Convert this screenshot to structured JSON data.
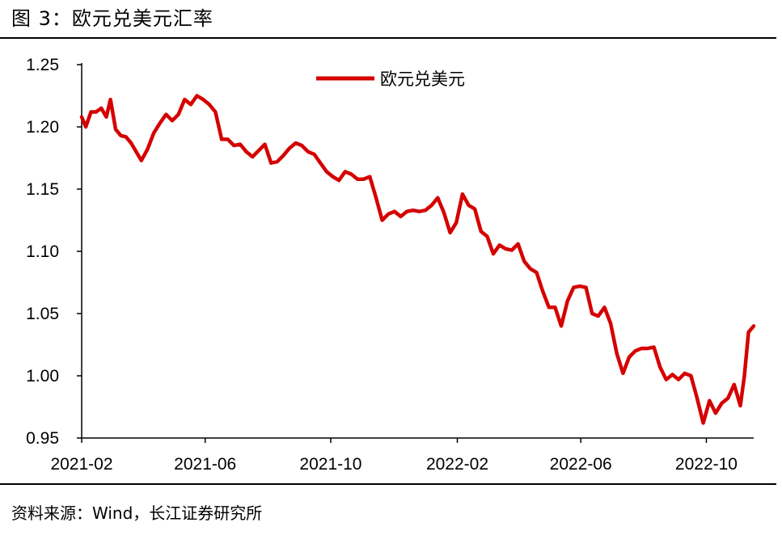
{
  "figure": {
    "title": "图 3：欧元兑美元汇率",
    "source": "资料来源：Wind，长江证券研究所"
  },
  "colors": {
    "series": "#d50000",
    "axis": "#000000"
  },
  "chart_data": {
    "type": "line",
    "title": "",
    "xlabel": "",
    "ylabel": "",
    "ylim": [
      0.95,
      1.25
    ],
    "yticks": [
      "0.95",
      "1.00",
      "1.05",
      "1.10",
      "1.15",
      "1.20",
      "1.25"
    ],
    "xticks": [
      "2021-02",
      "2021-06",
      "2021-10",
      "2022-02",
      "2022-06",
      "2022-10"
    ],
    "xlim": [
      "2021-02-01",
      "2022-11-16"
    ],
    "grid": false,
    "legend": "top-center",
    "series": [
      {
        "name": "欧元兑美元",
        "x": [
          "2021-02-01",
          "2021-02-05",
          "2021-02-10",
          "2021-02-15",
          "2021-02-20",
          "2021-02-25",
          "2021-03-01",
          "2021-03-06",
          "2021-03-11",
          "2021-03-16",
          "2021-03-21",
          "2021-03-26",
          "2021-03-31",
          "2021-04-06",
          "2021-04-12",
          "2021-04-18",
          "2021-04-24",
          "2021-04-30",
          "2021-05-06",
          "2021-05-12",
          "2021-05-18",
          "2021-05-24",
          "2021-05-30",
          "2021-06-05",
          "2021-06-11",
          "2021-06-17",
          "2021-06-23",
          "2021-06-29",
          "2021-07-05",
          "2021-07-11",
          "2021-07-17",
          "2021-07-23",
          "2021-07-29",
          "2021-08-04",
          "2021-08-10",
          "2021-08-16",
          "2021-08-22",
          "2021-08-28",
          "2021-09-03",
          "2021-09-09",
          "2021-09-15",
          "2021-09-21",
          "2021-09-27",
          "2021-10-03",
          "2021-10-09",
          "2021-10-15",
          "2021-10-21",
          "2021-10-27",
          "2021-11-02",
          "2021-11-08",
          "2021-11-14",
          "2021-11-20",
          "2021-11-26",
          "2021-12-02",
          "2021-12-08",
          "2021-12-14",
          "2021-12-20",
          "2021-12-26",
          "2022-01-01",
          "2022-01-07",
          "2022-01-13",
          "2022-01-19",
          "2022-01-25",
          "2022-01-31",
          "2022-02-06",
          "2022-02-12",
          "2022-02-18",
          "2022-02-24",
          "2022-03-02",
          "2022-03-08",
          "2022-03-14",
          "2022-03-20",
          "2022-03-26",
          "2022-04-01",
          "2022-04-07",
          "2022-04-13",
          "2022-04-19",
          "2022-04-25",
          "2022-05-01",
          "2022-05-07",
          "2022-05-13",
          "2022-05-19",
          "2022-05-25",
          "2022-05-31",
          "2022-06-06",
          "2022-06-12",
          "2022-06-18",
          "2022-06-24",
          "2022-06-30",
          "2022-07-06",
          "2022-07-12",
          "2022-07-18",
          "2022-07-24",
          "2022-07-30",
          "2022-08-05",
          "2022-08-11",
          "2022-08-17",
          "2022-08-23",
          "2022-08-29",
          "2022-09-04",
          "2022-09-10",
          "2022-09-16",
          "2022-09-22",
          "2022-09-28",
          "2022-10-04",
          "2022-10-10",
          "2022-10-16",
          "2022-10-22",
          "2022-10-28",
          "2022-11-03",
          "2022-11-07",
          "2022-11-11",
          "2022-11-16"
        ],
        "values": [
          1.208,
          1.2,
          1.212,
          1.212,
          1.215,
          1.208,
          1.222,
          1.198,
          1.193,
          1.192,
          1.187,
          1.18,
          1.173,
          1.182,
          1.195,
          1.203,
          1.21,
          1.205,
          1.21,
          1.222,
          1.218,
          1.225,
          1.222,
          1.218,
          1.212,
          1.19,
          1.19,
          1.185,
          1.186,
          1.18,
          1.176,
          1.181,
          1.186,
          1.171,
          1.172,
          1.177,
          1.183,
          1.187,
          1.185,
          1.18,
          1.178,
          1.171,
          1.164,
          1.16,
          1.157,
          1.164,
          1.162,
          1.158,
          1.158,
          1.16,
          1.143,
          1.125,
          1.13,
          1.132,
          1.128,
          1.132,
          1.133,
          1.132,
          1.133,
          1.137,
          1.143,
          1.131,
          1.115,
          1.123,
          1.146,
          1.137,
          1.134,
          1.116,
          1.112,
          1.098,
          1.105,
          1.102,
          1.101,
          1.106,
          1.092,
          1.086,
          1.083,
          1.068,
          1.055,
          1.055,
          1.04,
          1.06,
          1.071,
          1.072,
          1.071,
          1.05,
          1.048,
          1.055,
          1.042,
          1.018,
          1.002,
          1.015,
          1.02,
          1.022,
          1.022,
          1.023,
          1.007,
          0.997,
          1.001,
          0.997,
          1.002,
          1.0,
          0.982,
          0.962,
          0.98,
          0.97,
          0.978,
          0.982,
          0.993,
          0.976,
          1.0,
          1.035,
          1.04
        ]
      }
    ]
  }
}
